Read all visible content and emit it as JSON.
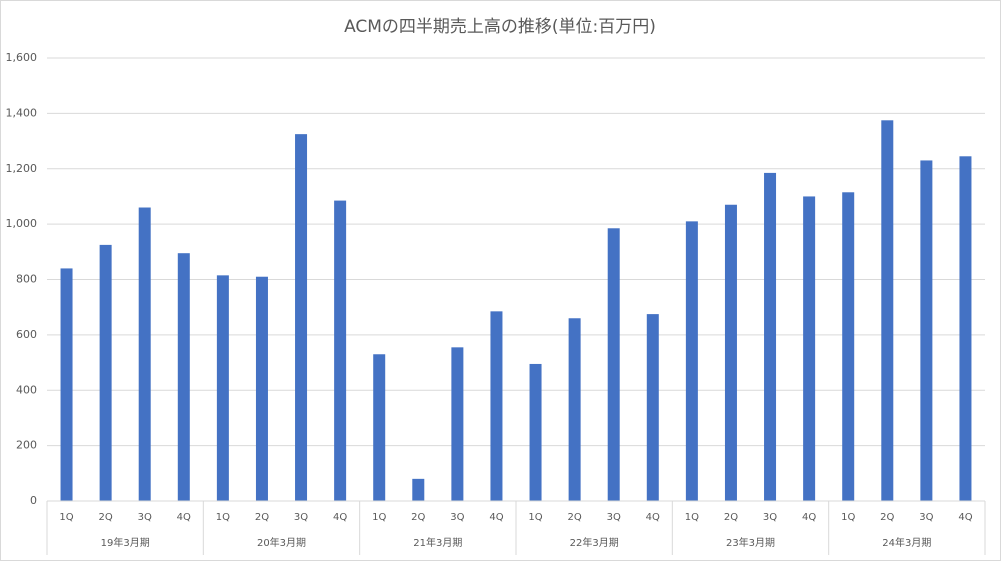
{
  "chart_data": {
    "type": "bar",
    "title": "ACMの四半期売上高の推移(単位:百万円)",
    "color": "#4472c4",
    "ylim": [
      0,
      1600
    ],
    "yticks": [
      0,
      200,
      400,
      600,
      800,
      {
        "value": 1000,
        "label": "1,000"
      },
      {
        "value": 1200,
        "label": "1,200"
      },
      {
        "value": 1400,
        "label": "1,400"
      },
      {
        "value": 1600,
        "label": "1,600"
      }
    ],
    "grid": true,
    "groups": [
      {
        "label": "19年3月期",
        "categories": [
          "1Q",
          "2Q",
          "3Q",
          "4Q"
        ],
        "values": [
          840,
          925,
          1060,
          895
        ]
      },
      {
        "label": "20年3月期",
        "categories": [
          "1Q",
          "2Q",
          "3Q",
          "4Q"
        ],
        "values": [
          815,
          810,
          1325,
          1085
        ]
      },
      {
        "label": "21年3月期",
        "categories": [
          "1Q",
          "2Q",
          "3Q",
          "4Q"
        ],
        "values": [
          530,
          80,
          555,
          685
        ]
      },
      {
        "label": "22年3月期",
        "categories": [
          "1Q",
          "2Q",
          "3Q",
          "4Q"
        ],
        "values": [
          495,
          660,
          985,
          675
        ]
      },
      {
        "label": "23年3月期",
        "categories": [
          "1Q",
          "2Q",
          "3Q",
          "4Q"
        ],
        "values": [
          1010,
          1070,
          1185,
          1100
        ]
      },
      {
        "label": "24年3月期",
        "categories": [
          "1Q",
          "2Q",
          "3Q",
          "4Q"
        ],
        "values": [
          1115,
          1375,
          1230,
          1245
        ]
      }
    ]
  }
}
